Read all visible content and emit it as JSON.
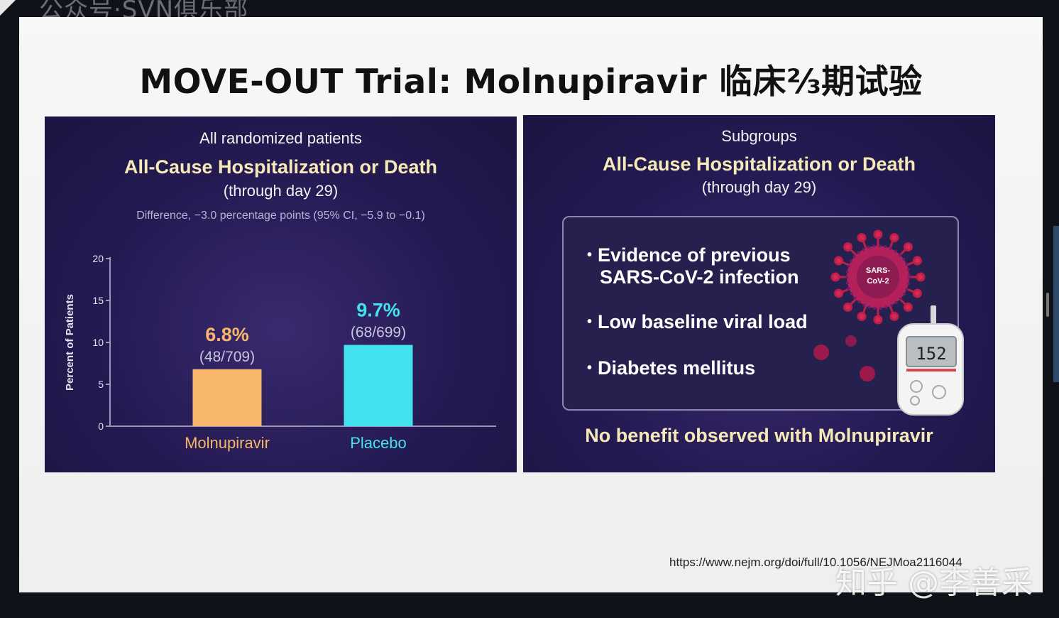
{
  "watermark_top": "公众号·SVN俱乐部",
  "slide": {
    "title": "MOVE-OUT Trial: Molnupiravir 临床⅔期试验",
    "url": "https://www.nejm.org/doi/full/10.1056/NEJMoa2116044",
    "watermark": "知乎 @李善采"
  },
  "left_panel": {
    "subtitle": "All randomized patients",
    "heading": "All-Cause Hospitalization or Death",
    "paren": "(through day 29)",
    "difference": "Difference, −3.0 percentage points (95% CI, −5.9 to −0.1)"
  },
  "right_panel": {
    "subtitle": "Subgroups",
    "heading": "All-Cause Hospitalization or Death",
    "paren": "(through day 29)",
    "bullets": [
      "Evidence of previous",
      "SARS-CoV-2 infection",
      "Low baseline viral load",
      "Diabetes mellitus"
    ],
    "virus_label_1": "SARS-",
    "virus_label_2": "CoV-2",
    "meter_reading": "152",
    "conclusion": "No benefit observed with Molnupiravir"
  },
  "chart_data": {
    "type": "bar",
    "categories": [
      "Molnupiravir",
      "Placebo"
    ],
    "values": [
      6.8,
      9.7
    ],
    "value_labels": [
      "6.8%",
      "9.7%"
    ],
    "count_labels": [
      "(48/709)",
      "(68/699)"
    ],
    "ylabel": "Percent of Patients",
    "ylim": [
      0,
      20
    ],
    "yticks": [
      0,
      5,
      10,
      15,
      20
    ],
    "colors": [
      "#f7b66a",
      "#42e3ef"
    ],
    "label_colors": [
      "#f7b66a",
      "#42e3ef"
    ]
  }
}
